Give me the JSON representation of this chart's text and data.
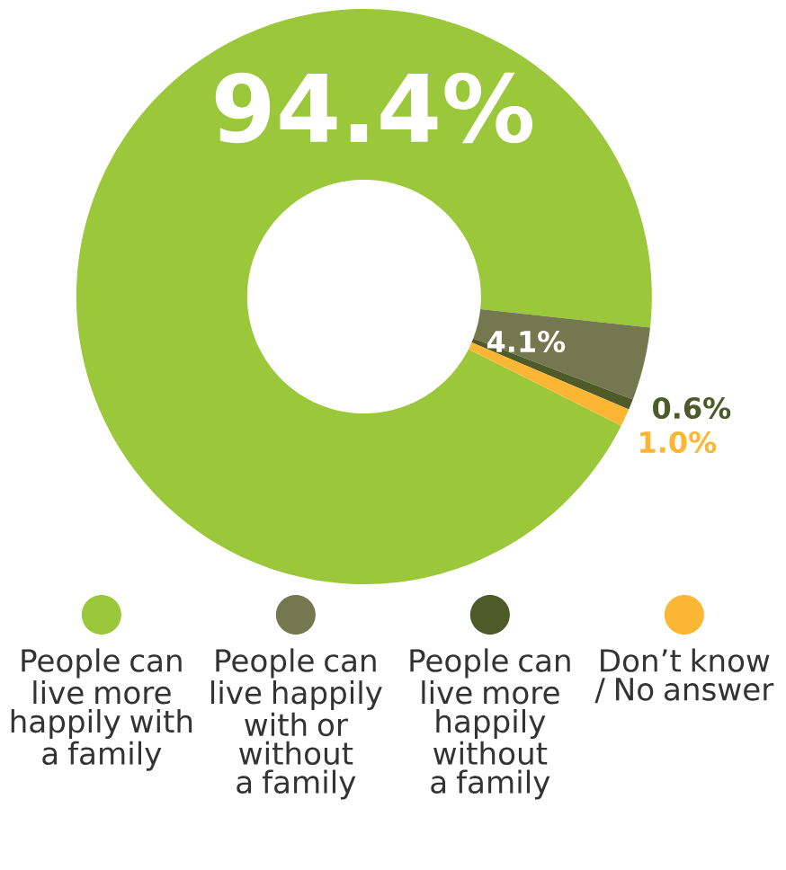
{
  "chart_data": {
    "type": "donut",
    "categories": [
      "People can live more happily with a family",
      "People can live happily with or without a family",
      "People can live more happily without a family",
      "Don’t know / No answer"
    ],
    "values": [
      94.4,
      4.1,
      0.6,
      1.0
    ],
    "colors": [
      "#9bc83a",
      "#74784e",
      "#4e5a28",
      "#fbb634"
    ],
    "value_labels": [
      "94.4%",
      "4.1%",
      "0.6%",
      "1.0%"
    ],
    "legend": "bottom"
  }
}
